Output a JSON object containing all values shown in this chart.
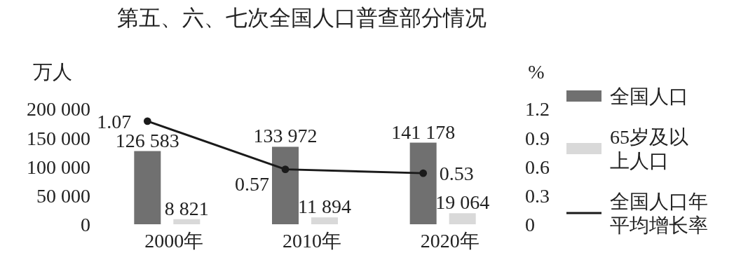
{
  "chart_data": {
    "type": "bar",
    "title": "第五、六、七次全国人口普查部分情况",
    "ylabel": "万人",
    "y2label": "%",
    "categories": [
      "2000年",
      "2010年",
      "2020年"
    ],
    "series": [
      {
        "name": "全国人口",
        "color": "#707070",
        "values": [
          126583,
          133972,
          141178
        ],
        "value_labels": [
          "126 583",
          "133 972",
          "141 178"
        ]
      },
      {
        "name": "65岁及以上人口",
        "color": "#d9d9d9",
        "values": [
          8821,
          11894,
          19064
        ],
        "value_labels": [
          "8 821",
          "11 894",
          "19 064"
        ]
      },
      {
        "name": "全国人口年平均增长率",
        "type": "line",
        "axis": "y2",
        "color": "#1a1a1a",
        "values": [
          1.07,
          0.57,
          0.53
        ],
        "value_labels": [
          "1.07",
          "0.57",
          "0.53"
        ],
        "marker": "circle"
      }
    ],
    "ylim": [
      0,
      200000
    ],
    "yticks": [
      {
        "value": 0,
        "label": "0"
      },
      {
        "value": 50000,
        "label": "50 000"
      },
      {
        "value": 100000,
        "label": "100 000"
      },
      {
        "value": 150000,
        "label": "150 000"
      },
      {
        "value": 200000,
        "label": "200 000"
      }
    ],
    "y2lim": [
      0,
      1.2
    ],
    "y2ticks": [
      {
        "value": 0,
        "label": "0"
      },
      {
        "value": 0.3,
        "label": "0.3"
      },
      {
        "value": 0.6,
        "label": "0.6"
      },
      {
        "value": 0.9,
        "label": "0.9"
      },
      {
        "value": 1.2,
        "label": "1.2"
      }
    ],
    "legend": "right",
    "grid": false
  }
}
